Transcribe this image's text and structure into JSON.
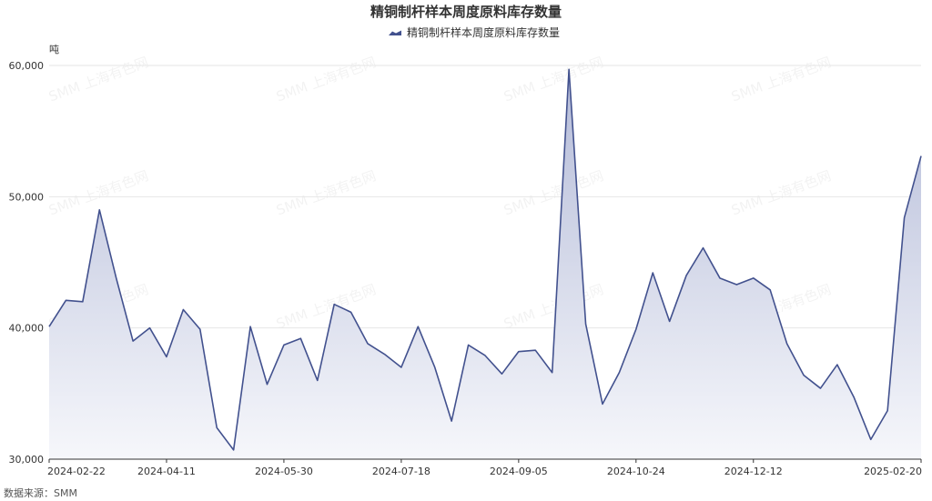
{
  "chart_data": {
    "type": "area",
    "title": "精铜制杆样本周度原料库存数量",
    "legend": [
      "精铜制杆样本周度原料库存数量"
    ],
    "legend_position": "top-center",
    "ylabel": "吨",
    "xlabel": "",
    "ylim": [
      30000,
      60000
    ],
    "yticks": [
      30000,
      40000,
      50000,
      60000
    ],
    "ytick_labels": [
      "30,000",
      "40,000",
      "50,000",
      "60,000"
    ],
    "xtick_labels": [
      "2024-02-22",
      "2024-04-11",
      "2024-05-30",
      "2024-07-18",
      "2024-09-05",
      "2024-10-24",
      "2024-12-12",
      "2025-02-20"
    ],
    "grid": true,
    "colors": {
      "line": "#42518e",
      "area_top": "#b4bbd8",
      "area_bottom": "#f6f7fb"
    },
    "series": [
      {
        "name": "精铜制杆样本周度原料库存数量",
        "values": [
          40100,
          42100,
          42000,
          49000,
          43800,
          39000,
          40000,
          37800,
          41400,
          39900,
          32400,
          30700,
          40100,
          35700,
          38700,
          39200,
          36000,
          41800,
          41200,
          38800,
          38000,
          37000,
          40100,
          37000,
          32900,
          38700,
          37900,
          36500,
          38200,
          38300,
          36600,
          59700,
          40300,
          34200,
          36600,
          39900,
          44200,
          40500,
          44000,
          46100,
          43800,
          43300,
          43800,
          42900,
          38800,
          36400,
          35400,
          37200,
          34700,
          31500,
          33700,
          48400,
          53100
        ]
      }
    ]
  },
  "source": "数据来源：SMM",
  "watermark": "SMM 上海有色网"
}
